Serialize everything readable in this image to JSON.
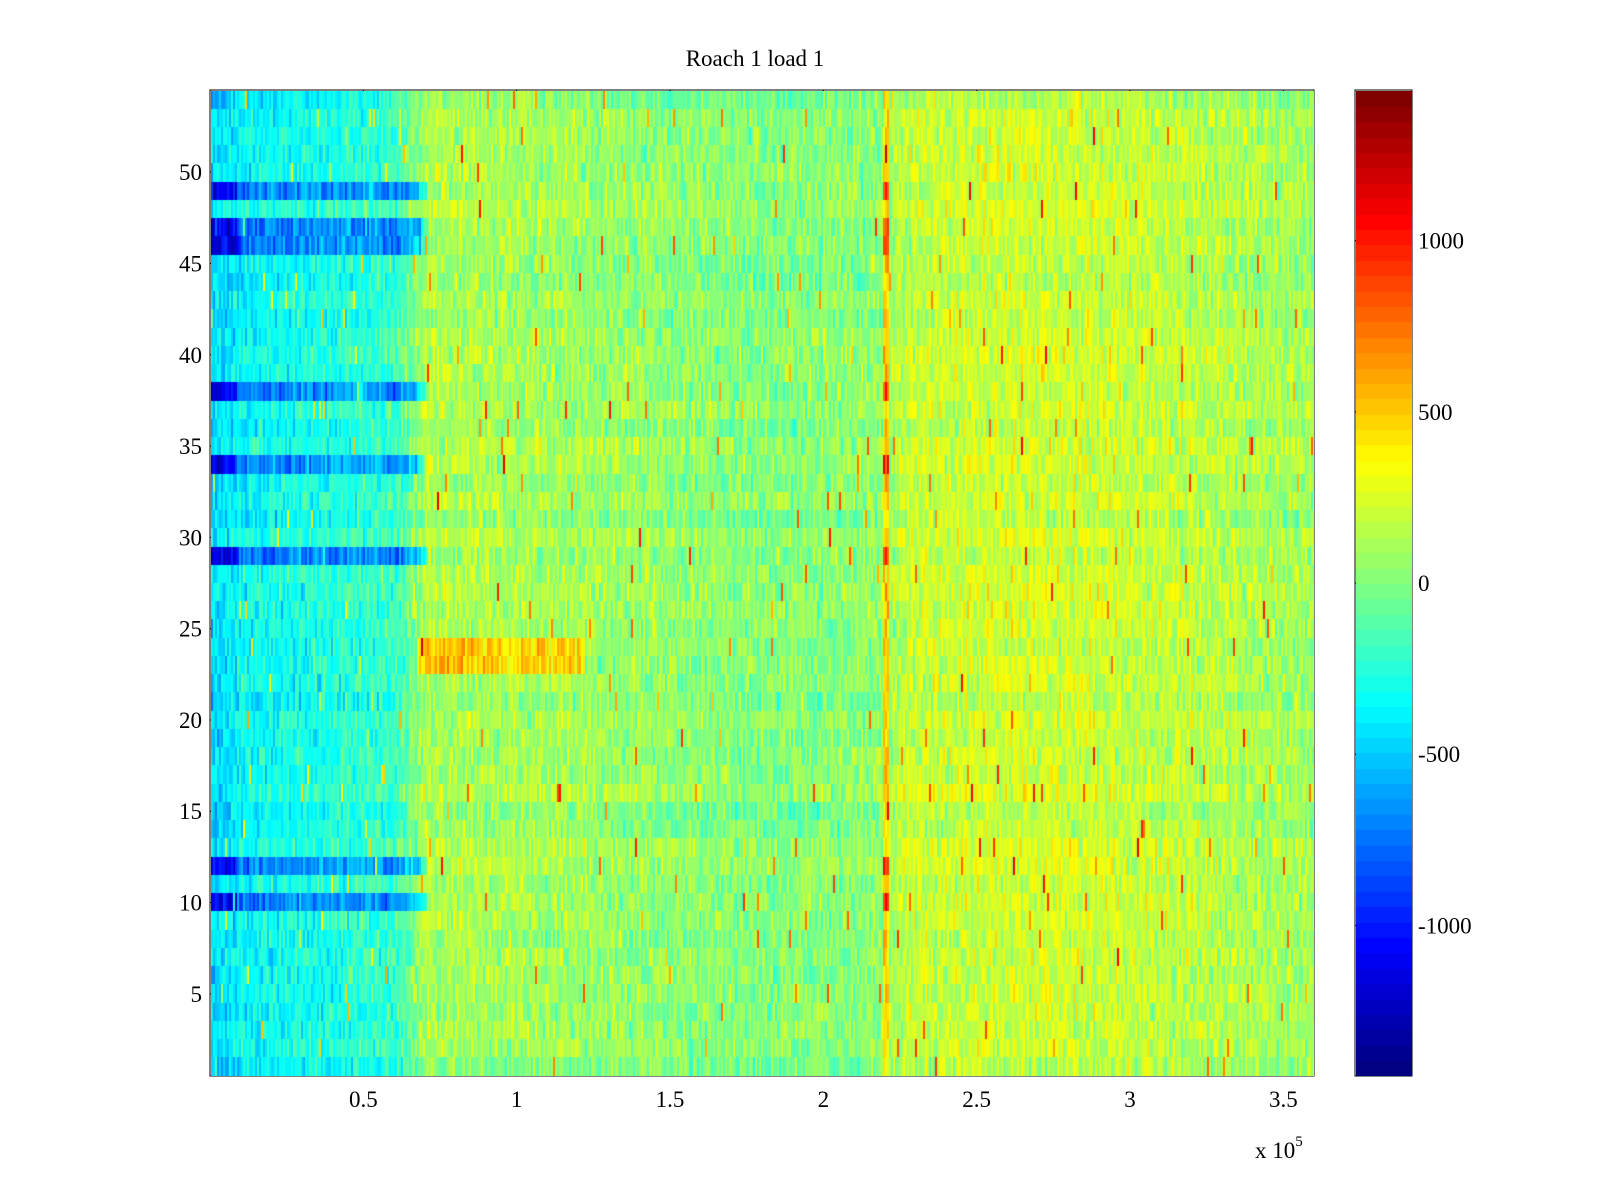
{
  "chart_data": {
    "type": "heatmap",
    "title": "Roach 1 load 1",
    "xlabel": "",
    "ylabel": "",
    "x_exponent_label": "x 10",
    "x_exponent_power": "5",
    "xlim": [
      0,
      3.6
    ],
    "ylim": [
      0.5,
      54.5
    ],
    "x_ticks": [
      0.5,
      1,
      1.5,
      2,
      2.5,
      3,
      3.5
    ],
    "x_tick_labels": [
      "0.5",
      "1",
      "1.5",
      "2",
      "2.5",
      "3",
      "3.5"
    ],
    "y_ticks": [
      5,
      10,
      15,
      20,
      25,
      30,
      35,
      40,
      45,
      50
    ],
    "y_tick_labels": [
      "5",
      "10",
      "15",
      "20",
      "25",
      "30",
      "35",
      "40",
      "45",
      "50"
    ],
    "rows": 54,
    "colormap": "jet",
    "clim": [
      -1440,
      1440
    ],
    "colorbar_ticks": [
      1000,
      500,
      0,
      -500,
      -1000
    ],
    "colorbar_tick_labels": [
      "1000",
      "500",
      "0",
      "-500",
      "-1000"
    ],
    "row_pattern": {
      "base_segments_x": [
        0,
        0.05,
        0.1,
        0.2,
        0.3,
        0.6,
        0.7,
        1.2,
        1.8,
        2.2,
        2.25,
        2.6,
        2.8,
        3.2,
        3.6
      ],
      "base_segments_value": [
        -480,
        -420,
        -360,
        -320,
        -300,
        -200,
        120,
        80,
        0,
        40,
        180,
        220,
        220,
        160,
        80
      ],
      "dark_rows": [
        10,
        12,
        29,
        34,
        38,
        46,
        47,
        49
      ],
      "hot_block_rows": [
        23,
        24
      ],
      "hot_block_x": [
        0.67,
        1.22
      ],
      "hot_line_x": 2.2,
      "noise_amplitude": 320
    }
  }
}
